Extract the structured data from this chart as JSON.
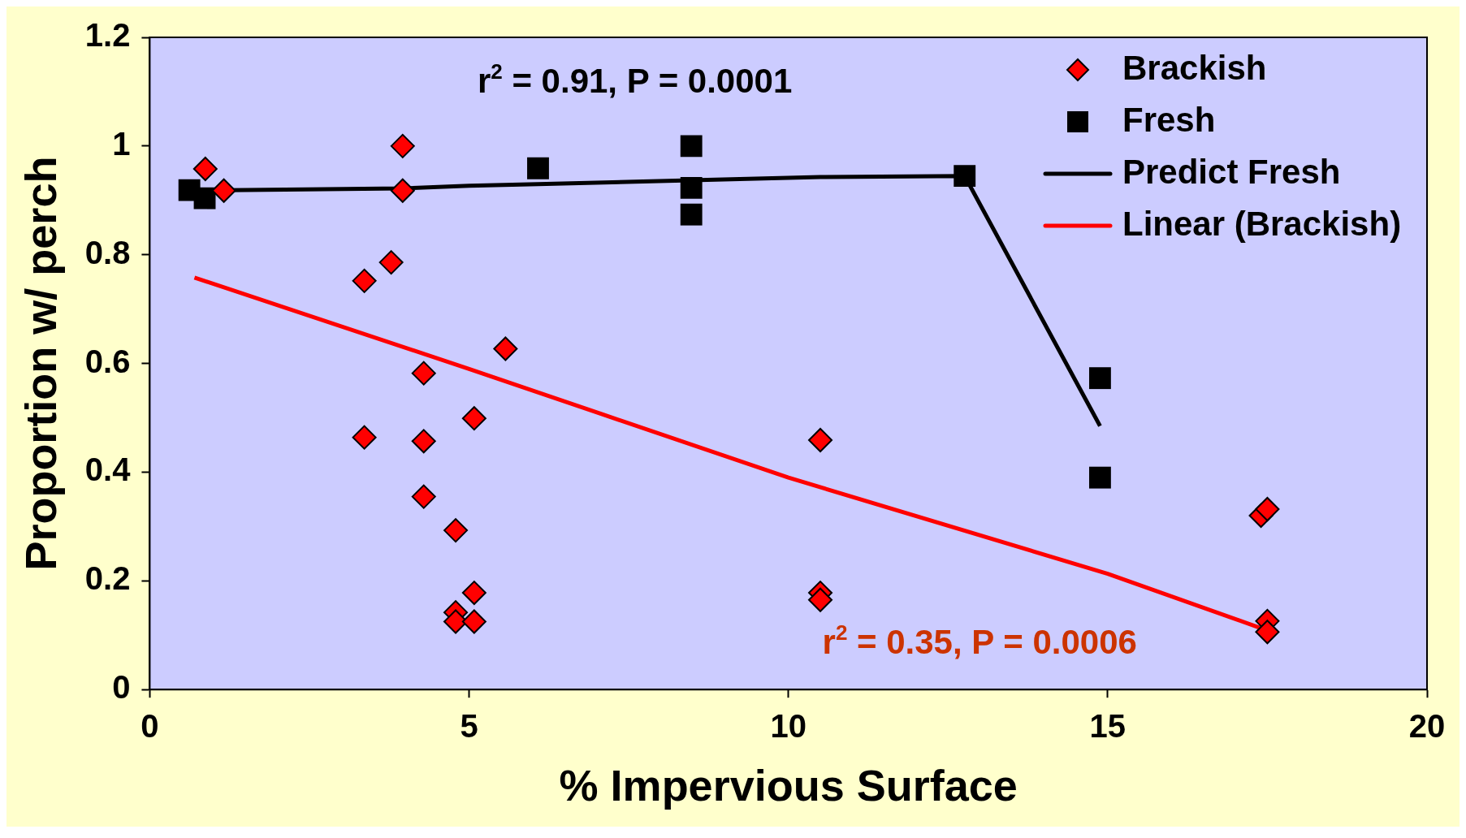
{
  "chart_data": {
    "type": "scatter",
    "xlabel": "% Impervious Surface",
    "ylabel": "Proportion w/ perch",
    "xlim": [
      0,
      20
    ],
    "xticks": [
      0,
      5,
      10,
      15,
      20
    ],
    "ylim": [
      0,
      1.2
    ],
    "yticks": [
      0,
      0.2,
      0.4,
      0.6,
      0.8,
      1,
      1.2
    ],
    "legend": "top right",
    "grid": false,
    "annotations": [
      "r$^{2}$ = 0.91, P = 0.0001",
      "r$^{2}$ = 0.35, P = 0.0006"
    ],
    "series": [
      {
        "name": "Brackish",
        "type": "scatter",
        "marker": "diamond",
        "color": "#ff0000",
        "x": [
          0.87,
          1.16,
          3.96,
          3.96,
          3.78,
          3.36,
          4.29,
          5.57,
          3.36,
          4.29,
          5.08,
          4.29,
          4.79,
          5.08,
          4.79,
          4.79,
          5.08,
          10.5,
          10.5,
          10.5,
          17.4,
          17.5,
          17.5,
          17.5
        ],
        "values": [
          0.958,
          0.918,
          1.0,
          0.918,
          0.786,
          0.752,
          0.582,
          0.627,
          0.464,
          0.457,
          0.499,
          0.355,
          0.293,
          0.178,
          0.142,
          0.125,
          0.125,
          0.459,
          0.178,
          0.165,
          0.32,
          0.332,
          0.126,
          0.106
        ]
      },
      {
        "name": "Fresh",
        "type": "scatter",
        "marker": "square",
        "color": "#000000",
        "x": [
          0.62,
          0.86,
          6.08,
          8.48,
          8.48,
          8.48,
          12.76,
          14.88,
          14.88
        ],
        "values": [
          0.919,
          0.904,
          0.959,
          1.0,
          0.923,
          0.874,
          0.945,
          0.573,
          0.39
        ]
      },
      {
        "name": "Predict Fresh",
        "type": "line",
        "marker": "none",
        "color": "#000000",
        "x": [
          0.62,
          3.96,
          5.0,
          6.08,
          8.48,
          10.5,
          12.76,
          14.88
        ],
        "values": [
          0.918,
          0.922,
          0.927,
          0.93,
          0.937,
          0.943,
          0.945,
          0.485
        ]
      },
      {
        "name": "Linear (Brackish)",
        "type": "line",
        "marker": "none",
        "color": "#ff0000",
        "x": [
          0.7,
          5,
          10,
          15,
          17.4
        ],
        "values": [
          0.758,
          0.59,
          0.39,
          0.213,
          0.113
        ]
      }
    ]
  }
}
